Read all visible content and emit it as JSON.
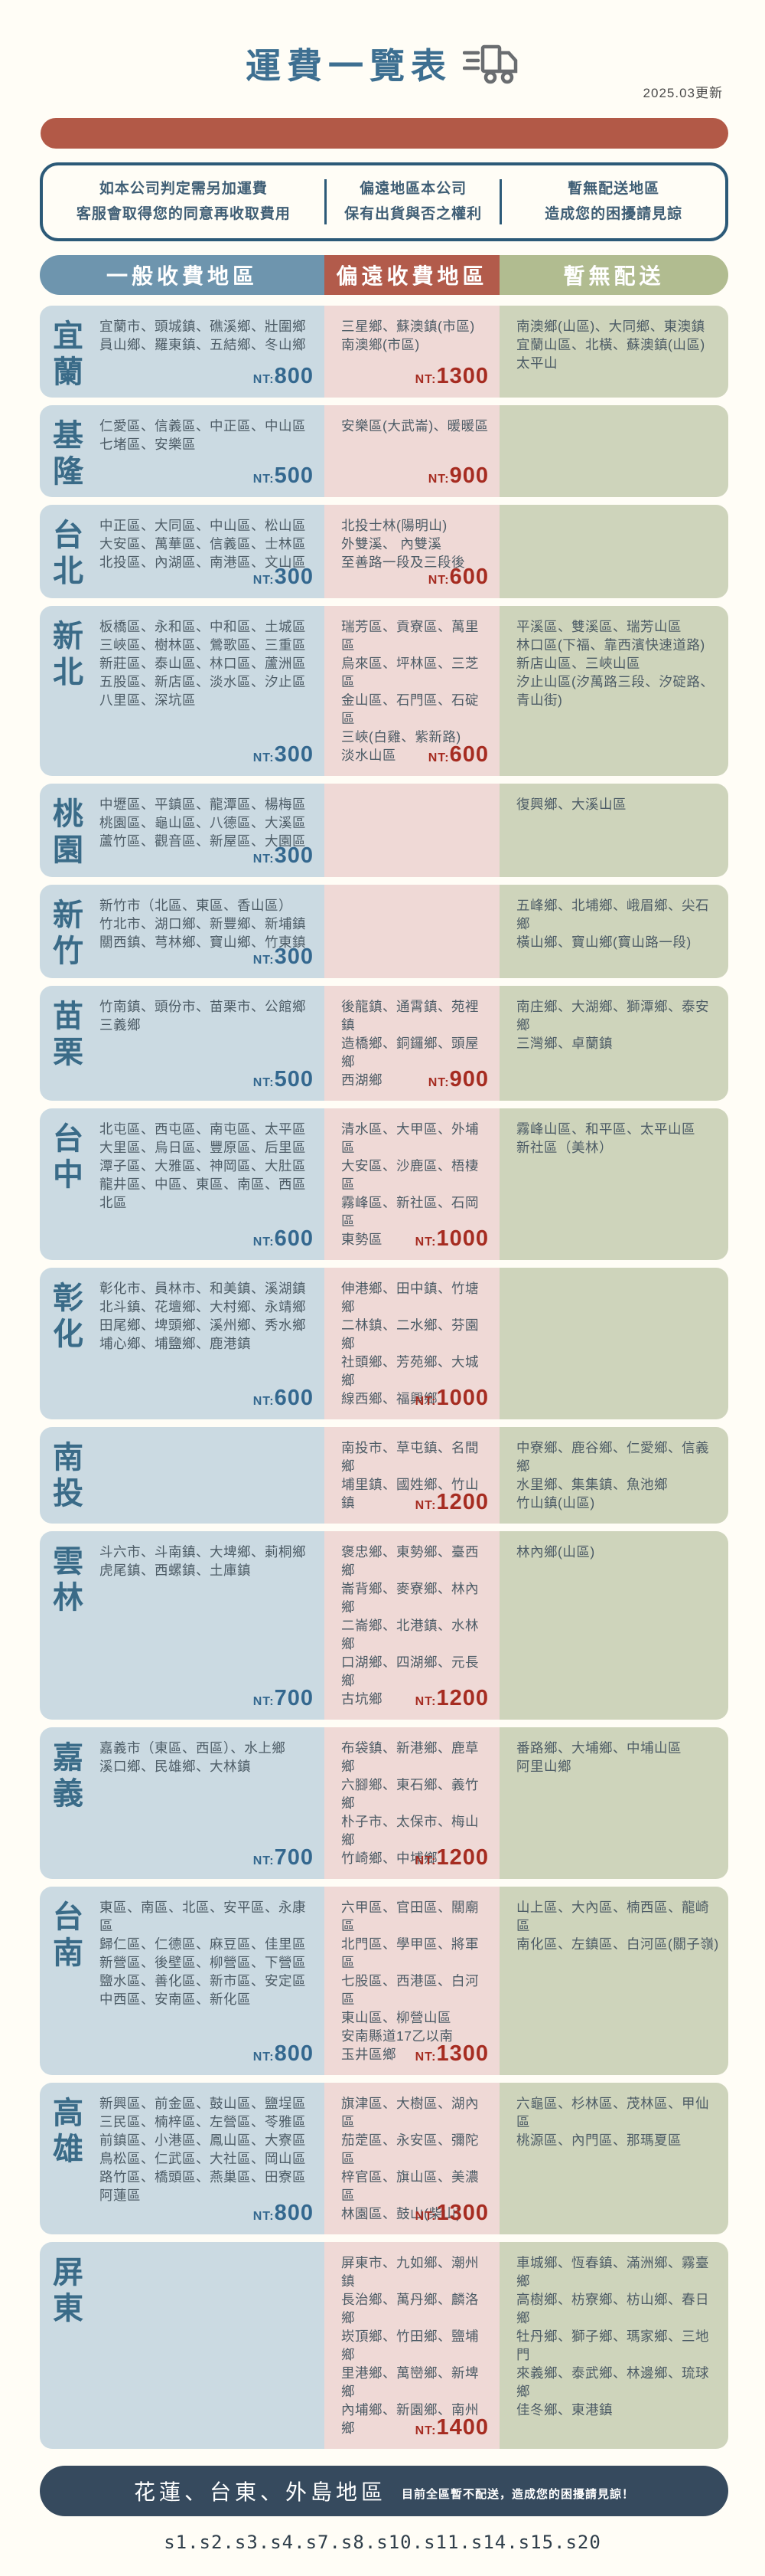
{
  "header": {
    "title": "運費一覽表",
    "updated": "2025.03更新"
  },
  "notice": {
    "items": [
      {
        "line1": "如本公司判定需另加運費",
        "line2": "客服會取得您的同意再收取費用"
      },
      {
        "line1": "偏遠地區本公司",
        "line2": "保有出貨與否之權利"
      },
      {
        "line1": "暫無配送地區",
        "line2": "造成您的困擾請見諒"
      }
    ]
  },
  "columns": {
    "general": {
      "label": "一般收費地區",
      "color": "#6e95ae"
    },
    "remote": {
      "label": "偏遠收費地區",
      "color": "#b25b4b"
    },
    "none": {
      "label": "暫無配送",
      "color": "#b1bc90"
    }
  },
  "price_prefix": "NT:",
  "colors": {
    "general_cell": "#cbdae2",
    "remote_cell": "#efd9d6",
    "none_cell": "#ced4bb",
    "general_price": "#34688f",
    "remote_price": "#a62c21",
    "red_bar": "#b25947",
    "notice_border": "#2c5a78",
    "footer_bg": "#364a5e",
    "region_label": "#3a6b88",
    "title": "#3d6f91"
  },
  "rows": [
    {
      "region": "宜蘭",
      "general": {
        "areas": [
          "宜蘭市、頭城鎮、礁溪鄉、壯圍鄉",
          "員山鄉、羅東鎮、五結鄉、冬山鄉"
        ],
        "price": "800"
      },
      "remote": {
        "areas": [
          "三星鄉、蘇澳鎮(市區)",
          "南澳鄉(市區)"
        ],
        "price": "1300"
      },
      "none": {
        "areas": [
          "南澳鄉(山區)、大同鄉、東澳鎮",
          "宜蘭山區、北橫、蘇澳鎮(山區)",
          "太平山"
        ]
      }
    },
    {
      "region": "基隆",
      "general": {
        "areas": [
          "仁愛區、信義區、中正區、中山區",
          "七堵區、安樂區"
        ],
        "price": "500"
      },
      "remote": {
        "areas": [
          "安樂區(大武崙)、暖暖區"
        ],
        "price": "900"
      },
      "none": {
        "areas": []
      }
    },
    {
      "region": "台北",
      "general": {
        "areas": [
          "中正區、大同區、中山區、松山區",
          "大安區、萬華區、信義區、士林區",
          "北投區、內湖區、南港區、文山區"
        ],
        "price": "300"
      },
      "remote": {
        "areas": [
          "北投士林(陽明山)",
          "外雙溪、 內雙溪",
          "至善路一段及三段後"
        ],
        "price": "600"
      },
      "none": {
        "areas": []
      }
    },
    {
      "region": "新北",
      "general": {
        "areas": [
          "板橋區、永和區、中和區、土城區",
          "三峽區、樹林區、鶯歌區、三重區",
          "新莊區、泰山區、林口區、蘆洲區",
          "五股區、新店區、淡水區、汐止區",
          "八里區、深坑區"
        ],
        "price": "300"
      },
      "remote": {
        "areas": [
          "瑞芳區、貢寮區、萬里區",
          "烏來區、坪林區、三芝區",
          "金山區、石門區、石碇區",
          "三峽(白雞、紫新路)",
          "淡水山區"
        ],
        "price": "600"
      },
      "none": {
        "areas": [
          "平溪區、雙溪區、瑞芳山區",
          "林口區(下福、靠西濱快速道路)",
          "新店山區、三峽山區",
          "汐止山區(汐萬路三段、汐碇路、",
          "青山街)"
        ]
      }
    },
    {
      "region": "桃園",
      "general": {
        "areas": [
          "中壢區、平鎮區、龍潭區、楊梅區",
          "桃園區、龜山區、八德區、大溪區",
          "蘆竹區、觀音區、新屋區、大園區"
        ],
        "price": "300"
      },
      "remote": {
        "areas": []
      },
      "none": {
        "areas": [
          "復興鄉、大溪山區"
        ]
      }
    },
    {
      "region": "新竹",
      "general": {
        "areas": [
          "新竹市（北區、東區、香山區）",
          "竹北市、湖口鄉、新豐鄉、新埔鎮",
          "關西鎮、芎林鄉、寶山鄉、竹東鎮"
        ],
        "price": "300"
      },
      "remote": {
        "areas": []
      },
      "none": {
        "areas": [
          "五峰鄉、北埔鄉、峨眉鄉、尖石鄉",
          "橫山鄉、寶山鄉(寶山路一段)"
        ]
      }
    },
    {
      "region": "苗栗",
      "general": {
        "areas": [
          "竹南鎮、頭份市、苗栗市、公館鄉",
          "三義鄉"
        ],
        "price": "500"
      },
      "remote": {
        "areas": [
          "後龍鎮、通霄鎮、苑裡鎮",
          "造橋鄉、銅鑼鄉、頭屋鄉",
          "西湖鄉"
        ],
        "price": "900"
      },
      "none": {
        "areas": [
          "南庄鄉、大湖鄉、獅潭鄉、泰安鄉",
          "三灣鄉、卓蘭鎮"
        ]
      }
    },
    {
      "region": "台中",
      "general": {
        "areas": [
          "北屯區、西屯區、南屯區、太平區",
          "大里區、烏日區、豐原區、后里區",
          "潭子區、大雅區、神岡區、大肚區",
          "龍井區、中區、東區、南區、西區",
          "北區"
        ],
        "price": "600"
      },
      "remote": {
        "areas": [
          "清水區、大甲區、外埔區",
          "大安區、沙鹿區、梧棲區",
          "霧峰區、新社區、石岡區",
          "東勢區"
        ],
        "price": "1000"
      },
      "none": {
        "areas": [
          "霧峰山區、和平區、太平山區",
          "新社區（美林）"
        ]
      }
    },
    {
      "region": "彰化",
      "general": {
        "areas": [
          "彰化市、員林市、和美鎮、溪湖鎮",
          "北斗鎮、花壇鄉、大村鄉、永靖鄉",
          "田尾鄉、埤頭鄉、溪州鄉、秀水鄉",
          "埔心鄉、埔鹽鄉、鹿港鎮"
        ],
        "price": "600"
      },
      "remote": {
        "areas": [
          "伸港鄉、田中鎮、竹塘鄉",
          "二林鎮、二水鄉、芬園鄉",
          "社頭鄉、芳苑鄉、大城鄉",
          "線西鄉、福興鄉"
        ],
        "price": "1000"
      },
      "none": {
        "areas": []
      }
    },
    {
      "region": "南投",
      "general": {
        "areas": []
      },
      "remote": {
        "areas": [
          "南投市、草屯鎮、名間鄉",
          "埔里鎮、國姓鄉、竹山鎮"
        ],
        "price": "1200"
      },
      "none": {
        "areas": [
          "中寮鄉、鹿谷鄉、仁愛鄉、信義鄉",
          "水里鄉、集集鎮、魚池鄉",
          "竹山鎮(山區)"
        ]
      }
    },
    {
      "region": "雲林",
      "general": {
        "areas": [
          "斗六市、斗南鎮、大埤鄉、莿桐鄉",
          "虎尾鎮、西螺鎮、土庫鎮"
        ],
        "price": "700"
      },
      "remote": {
        "areas": [
          "褒忠鄉、東勢鄉、臺西鄉",
          "崙背鄉、麥寮鄉、林內鄉",
          "二崙鄉、北港鎮、水林鄉",
          "口湖鄉、四湖鄉、元長鄉",
          "古坑鄉"
        ],
        "price": "1200"
      },
      "none": {
        "areas": [
          "林內鄉(山區)"
        ]
      }
    },
    {
      "region": "嘉義",
      "general": {
        "areas": [
          "嘉義市（東區、西區）、水上鄉",
          "溪口鄉、民雄鄉、大林鎮"
        ],
        "price": "700"
      },
      "remote": {
        "areas": [
          "布袋鎮、新港鄉、鹿草鄉",
          "六腳鄉、東石鄉、義竹鄉",
          "朴子市、太保市、梅山鄉",
          "竹崎鄉、中埔鄉"
        ],
        "price": "1200"
      },
      "none": {
        "areas": [
          "番路鄉、大埔鄉、中埔山區",
          "阿里山鄉"
        ]
      }
    },
    {
      "region": "台南",
      "general": {
        "areas": [
          "東區、南區、北區、安平區、永康區",
          "歸仁區、仁德區、麻豆區、佳里區",
          "新營區、後壁區、柳營區、下營區",
          "鹽水區、善化區、新市區、安定區",
          "中西區、安南區、新化區"
        ],
        "price": "800"
      },
      "remote": {
        "areas": [
          "六甲區、官田區、關廟區",
          "北門區、學甲區、將軍區",
          "七股區、西港區、白河區",
          "東山區、柳營山區",
          "安南縣道17乙以南",
          "玉井區鄉"
        ],
        "price": "1300"
      },
      "none": {
        "areas": [
          "山上區、大內區、楠西區、龍崎區",
          "南化區、左鎮區、白河區(關子嶺)"
        ]
      }
    },
    {
      "region": "高雄",
      "general": {
        "areas": [
          "新興區、前金區、鼓山區、鹽埕區",
          "三民區、楠梓區、左營區、苓雅區",
          "前鎮區、小港區、鳳山區、大寮區",
          "鳥松區、仁武區、大社區、岡山區",
          "路竹區、橋頭區、燕巢區、田寮區",
          "阿蓮區"
        ],
        "price": "800"
      },
      "remote": {
        "areas": [
          "旗津區、大樹區、湖內區",
          "茄萣區、永安區、彌陀區",
          "梓官區、旗山區、美濃區",
          "林園區、鼓山(柴山)"
        ],
        "price": "1300"
      },
      "none": {
        "areas": [
          "六龜區、杉林區、茂林區、甲仙區",
          "桃源區、內門區、那瑪夏區"
        ]
      }
    },
    {
      "region": "屏東",
      "general": {
        "areas": []
      },
      "remote": {
        "areas": [
          "屏東市、九如鄉、潮州鎮",
          "長治鄉、萬丹鄉、麟洛鄉",
          "崁頂鄉、竹田鄉、鹽埔鄉",
          "里港鄉、萬巒鄉、新埤鄉",
          "內埔鄉、新園鄉、南州鄉"
        ],
        "price": "1400"
      },
      "none": {
        "areas": [
          "車城鄉、恆春鎮、滿洲鄉、霧臺鄉",
          "高樹鄉、枋寮鄉、枋山鄉、春日鄉",
          "牡丹鄉、獅子鄉、瑪家鄉、三地門",
          "來義鄉、泰武鄉、林邊鄉、琉球鄉",
          "佳冬鄉、東港鎮"
        ]
      }
    }
  ],
  "footer": {
    "title": "花蓮、台東、外島地區",
    "note": "目前全區暫不配送，造成您的困擾請見諒！"
  },
  "bottom_code": "s1.s2.s3.s4.s7.s8.s10.s11.s14.s15.s20"
}
